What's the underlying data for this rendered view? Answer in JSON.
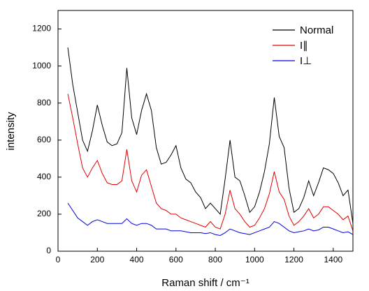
{
  "chart_data": {
    "type": "line",
    "x_label": "Raman shift / cm⁻¹",
    "y_label": "intensity",
    "x": [
      50,
      75,
      100,
      125,
      150,
      175,
      200,
      225,
      250,
      275,
      300,
      325,
      350,
      375,
      400,
      425,
      450,
      475,
      500,
      525,
      550,
      575,
      600,
      625,
      650,
      675,
      700,
      725,
      750,
      775,
      800,
      825,
      850,
      875,
      900,
      925,
      950,
      975,
      1000,
      1025,
      1050,
      1075,
      1100,
      1125,
      1150,
      1175,
      1200,
      1225,
      1250,
      1275,
      1300,
      1325,
      1350,
      1375,
      1400,
      1425,
      1450,
      1475,
      1500
    ],
    "series": [
      {
        "name": "Normal",
        "color": "#000000",
        "values": [
          1100,
          900,
          750,
          600,
          540,
          650,
          790,
          680,
          590,
          570,
          580,
          640,
          990,
          720,
          630,
          760,
          850,
          760,
          560,
          470,
          480,
          520,
          570,
          450,
          390,
          370,
          320,
          290,
          230,
          260,
          230,
          200,
          390,
          600,
          400,
          380,
          300,
          210,
          240,
          320,
          430,
          580,
          830,
          620,
          560,
          340,
          210,
          230,
          290,
          380,
          300,
          370,
          450,
          440,
          420,
          370,
          300,
          330,
          150
        ]
      },
      {
        "name": "I∥",
        "color": "#e00000",
        "values": [
          850,
          720,
          580,
          450,
          400,
          450,
          490,
          420,
          370,
          360,
          360,
          380,
          550,
          380,
          320,
          410,
          440,
          350,
          260,
          230,
          220,
          200,
          200,
          180,
          170,
          160,
          150,
          140,
          130,
          160,
          130,
          120,
          200,
          330,
          230,
          200,
          160,
          130,
          140,
          180,
          230,
          310,
          430,
          320,
          280,
          190,
          140,
          160,
          190,
          230,
          180,
          200,
          240,
          240,
          220,
          200,
          170,
          190,
          110
        ]
      },
      {
        "name": "I⊥",
        "color": "#0000e0",
        "values": [
          260,
          220,
          180,
          160,
          140,
          160,
          170,
          160,
          150,
          150,
          150,
          150,
          175,
          150,
          140,
          150,
          150,
          140,
          120,
          120,
          120,
          110,
          110,
          110,
          105,
          100,
          100,
          100,
          95,
          100,
          90,
          85,
          100,
          120,
          110,
          100,
          95,
          90,
          100,
          110,
          120,
          130,
          160,
          150,
          130,
          110,
          100,
          105,
          110,
          120,
          110,
          115,
          130,
          130,
          120,
          110,
          100,
          105,
          90
        ]
      }
    ],
    "xlim": [
      0,
      1500
    ],
    "xticks": [
      0,
      200,
      400,
      600,
      800,
      1000,
      1200,
      1400
    ],
    "ylim": [
      0,
      1300
    ],
    "yticks": [
      0,
      200,
      400,
      600,
      800,
      1000,
      1200
    ],
    "legend": "upper right"
  }
}
